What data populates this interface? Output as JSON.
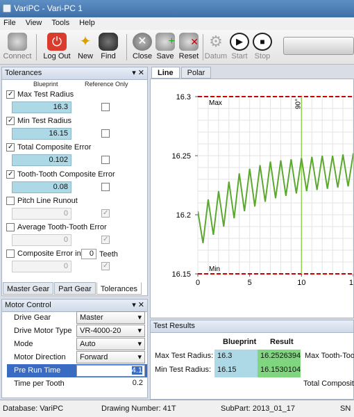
{
  "window": {
    "title": "VariPC - Vari-PC 1"
  },
  "menu": [
    "File",
    "View",
    "Tools",
    "Help"
  ],
  "toolbar": {
    "connect": "Connect",
    "logout": "Log Out",
    "new": "New",
    "find": "Find",
    "close": "Close",
    "save": "Save",
    "reset": "Reset",
    "datum": "Datum",
    "start": "Start",
    "stop": "Stop"
  },
  "tolerances": {
    "title": "Tolerances",
    "col_blueprint": "Blueprint",
    "col_reference": "Reference Only",
    "items": [
      {
        "label": "Max Test Radius",
        "value": "16.3",
        "checked": true
      },
      {
        "label": "Min Test Radius",
        "value": "16.15",
        "checked": true
      },
      {
        "label": "Total Composite Error",
        "value": "0.102",
        "checked": true
      },
      {
        "label": "Tooth-Tooth Composite Error",
        "value": "0.08",
        "checked": true
      },
      {
        "label": "Pitch Line Runout",
        "value": "0",
        "checked": false
      },
      {
        "label": "Average Tooth-Tooth Error",
        "value": "0",
        "checked": false
      },
      {
        "label": "Composite Error in",
        "value": "0",
        "checked": false
      }
    ],
    "teeth_value": "0",
    "teeth_label": "Teeth",
    "tabs": [
      "Master Gear",
      "Part Gear",
      "Tolerances"
    ]
  },
  "motor": {
    "title": "Motor Control",
    "drive_gear_label": "Drive Gear",
    "drive_gear": "Master",
    "drive_motor_type_label": "Drive Motor Type",
    "drive_motor_type": "VR-4000-20",
    "mode_label": "Mode",
    "mode": "Auto",
    "direction_label": "Motor Direction",
    "direction": "Forward",
    "pre_run_label": "Pre Run Time",
    "pre_run": "4.1",
    "time_per_tooth_label": "Time per Tooth",
    "time_per_tooth": "0.2"
  },
  "chart_tabs": [
    "Line",
    "Polar"
  ],
  "chart_data": {
    "type": "line",
    "xlim": [
      0,
      15
    ],
    "ylim": [
      16.15,
      16.3
    ],
    "x_ticks": [
      "0",
      "5",
      "10",
      "15"
    ],
    "y_ticks": [
      "16.3",
      "16.25",
      "16.2",
      "16.15"
    ],
    "max_label": "Max",
    "min_label": "Min",
    "max_value": 16.3,
    "min_value": 16.15,
    "marker_label": "90°",
    "marker_x": 10,
    "grid": true,
    "series": [
      {
        "x": [
          0,
          0.5,
          1,
          1.5,
          2,
          2.5,
          3,
          3.5,
          4,
          4.5,
          5,
          5.5,
          6,
          6.5,
          7,
          7.5,
          8,
          8.5,
          9,
          9.5,
          10,
          10.5,
          11,
          11.5,
          12,
          12.5,
          13,
          13.5,
          14,
          14.5,
          15,
          15.5
        ],
        "y": [
          16.203,
          16.176,
          16.213,
          16.183,
          16.22,
          16.19,
          16.228,
          16.197,
          16.235,
          16.203,
          16.239,
          16.207,
          16.242,
          16.211,
          16.245,
          16.214,
          16.246,
          16.216,
          16.247,
          16.218,
          16.248,
          16.22,
          16.249,
          16.221,
          16.25,
          16.222,
          16.25,
          16.223,
          16.251,
          16.224,
          16.252,
          16.225
        ]
      }
    ]
  },
  "results": {
    "title": "Test Results",
    "col_blueprint": "Blueprint",
    "col_result": "Result",
    "rows": [
      {
        "label": "Max Test Radius:",
        "blueprint": "16.3",
        "result": "16.2526394"
      },
      {
        "label": "Min Test Radius:",
        "blueprint": "16.15",
        "result": "16.1530104"
      }
    ],
    "right1": "Max Tooth-Toot",
    "right2": "Total Composite"
  },
  "status": {
    "database": "Database: VariPC",
    "drawing": "Drawing Number: 41T",
    "subpart": "SubPart: 2013_01_17",
    "extra": "SN"
  }
}
